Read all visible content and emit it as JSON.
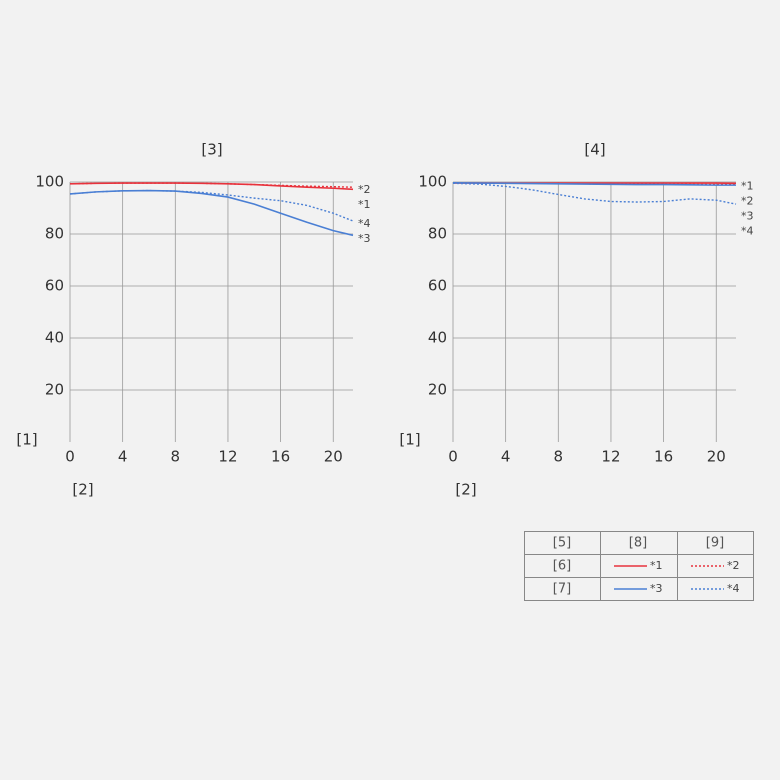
{
  "chart_data": [
    {
      "type": "line",
      "title": "[3]",
      "x_label": "[2]",
      "y_label": "[1]",
      "x": [
        0,
        2,
        4,
        6,
        8,
        10,
        12,
        14,
        16,
        18,
        20,
        21.5
      ],
      "xlim": [
        0,
        21.5
      ],
      "ylim": [
        0,
        100
      ],
      "xticks": [
        0,
        4,
        8,
        12,
        16,
        20
      ],
      "yticks": [
        20,
        40,
        60,
        80,
        100
      ],
      "grid": true,
      "series": [
        {
          "name": "*1",
          "color": "#e8323c",
          "dash": false,
          "values": [
            99.3,
            99.5,
            99.6,
            99.6,
            99.6,
            99.5,
            99.3,
            99,
            98.5,
            98,
            97.6,
            97.2
          ]
        },
        {
          "name": "*2",
          "color": "#e8323c",
          "dash": true,
          "values": [
            99.3,
            99.5,
            99.6,
            99.6,
            99.6,
            99.5,
            99.3,
            99,
            98.7,
            98.4,
            98.2,
            98
          ]
        },
        {
          "name": "*3",
          "color": "#4a7fd4",
          "dash": false,
          "values": [
            95.4,
            96.2,
            96.6,
            96.7,
            96.5,
            95.6,
            94.2,
            91.5,
            88,
            84.5,
            81.3,
            79.5
          ]
        },
        {
          "name": "*4",
          "color": "#4a7fd4",
          "dash": true,
          "values": [
            95.4,
            96.2,
            96.6,
            96.7,
            96.5,
            96,
            95,
            93.8,
            92.8,
            91,
            88,
            85
          ]
        }
      ]
    },
    {
      "type": "line",
      "title": "[4]",
      "x_label": "[2]",
      "y_label": "[1]",
      "x": [
        0,
        2,
        4,
        6,
        8,
        10,
        12,
        14,
        16,
        18,
        20,
        21.5
      ],
      "xlim": [
        0,
        21.5
      ],
      "ylim": [
        0,
        100
      ],
      "xticks": [
        0,
        4,
        8,
        12,
        16,
        20
      ],
      "yticks": [
        20,
        40,
        60,
        80,
        100
      ],
      "grid": true,
      "series": [
        {
          "name": "*1",
          "color": "#e8323c",
          "dash": false,
          "values": [
            99.6,
            99.6,
            99.6,
            99.6,
            99.6,
            99.6,
            99.6,
            99.6,
            99.6,
            99.6,
            99.6,
            99.5
          ]
        },
        {
          "name": "*2",
          "color": "#e8323c",
          "dash": true,
          "values": [
            99.6,
            99.6,
            99.5,
            99.5,
            99.4,
            99.3,
            99.2,
            99.2,
            99.1,
            99.1,
            99,
            99
          ]
        },
        {
          "name": "*3",
          "color": "#4a7fd4",
          "dash": false,
          "values": [
            99.7,
            99.6,
            99.5,
            99.4,
            99.3,
            99.2,
            99.1,
            99,
            99,
            98.9,
            98.8,
            98.8
          ]
        },
        {
          "name": "*4",
          "color": "#4a7fd4",
          "dash": true,
          "values": [
            99.5,
            99.2,
            98.3,
            97,
            95.2,
            93.5,
            92.5,
            92.3,
            92.5,
            93.5,
            93,
            91.5
          ]
        }
      ]
    }
  ],
  "legend_table": {
    "header": [
      "[5]",
      "[8]",
      "[9]"
    ],
    "rows": [
      "[6]",
      "[7]"
    ]
  }
}
